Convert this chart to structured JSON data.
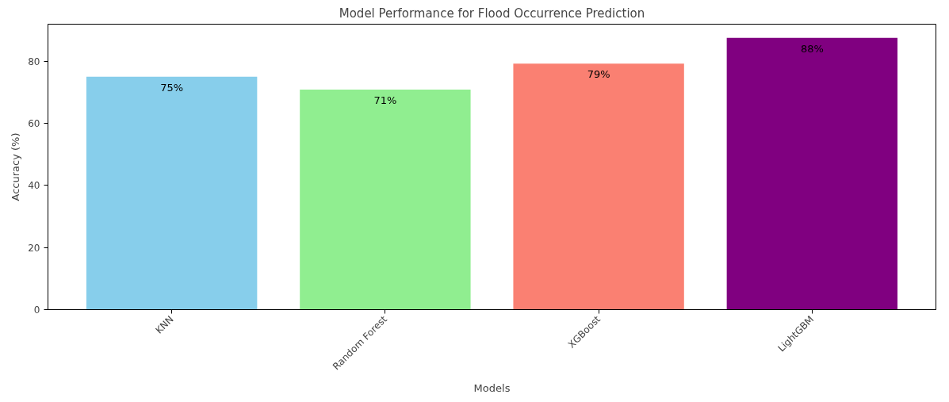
{
  "chart_data": {
    "type": "bar",
    "title": "Model Performance for Flood Occurrence Prediction",
    "xlabel": "Models",
    "ylabel": "Accuracy (%)",
    "categories": [
      "KNN",
      "Random Forest",
      "XGBoost",
      "LightGBM"
    ],
    "values": [
      75.1,
      70.9,
      79.3,
      87.6
    ],
    "colors": [
      "#87ceeb",
      "#90ee90",
      "#fa8072",
      "#800080"
    ],
    "value_labels": [
      "75%",
      "71%",
      "79%",
      "88%"
    ],
    "ylim": [
      0,
      92
    ],
    "yticks": [
      0,
      20,
      40,
      60,
      80
    ],
    "grid": false
  }
}
